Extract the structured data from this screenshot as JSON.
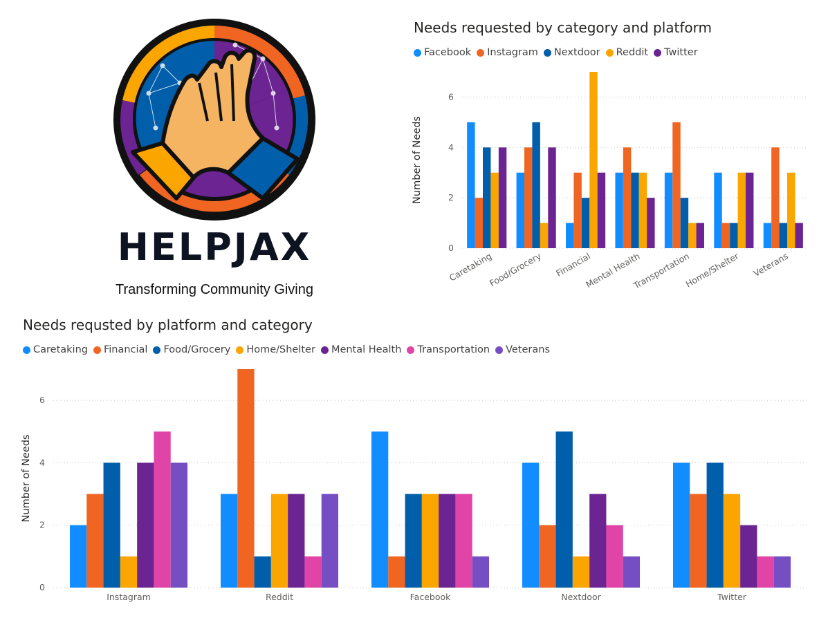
{
  "logo": {
    "name": "HELPJAX",
    "tagline": "Transforming Community Giving",
    "icon": "praying-hands-stained-glass-logo"
  },
  "chart_data": [
    {
      "type": "bar",
      "title": "Needs requested by category and platform",
      "xlabel": "",
      "ylabel": "Number of Needs",
      "ylim": [
        0,
        7
      ],
      "yticks": [
        0,
        2,
        4,
        6
      ],
      "grid": true,
      "legend": "top-left",
      "categories": [
        "Caretaking",
        "Food/Grocery",
        "Financial",
        "Mental Health",
        "Transportation",
        "Home/Shelter",
        "Veterans"
      ],
      "series": [
        {
          "name": "Facebook",
          "color": "#118DFF",
          "values": [
            5,
            3,
            1,
            3,
            3,
            3,
            1
          ]
        },
        {
          "name": "Instagram",
          "color": "#F06522",
          "values": [
            2,
            4,
            3,
            4,
            5,
            1,
            4
          ]
        },
        {
          "name": "Nextdoor",
          "color": "#005EAA",
          "values": [
            4,
            5,
            2,
            3,
            2,
            1,
            1
          ]
        },
        {
          "name": "Reddit",
          "color": "#FAA500",
          "values": [
            3,
            1,
            7,
            3,
            1,
            3,
            3
          ]
        },
        {
          "name": "Twitter",
          "color": "#6B2491",
          "values": [
            4,
            4,
            3,
            2,
            1,
            3,
            1
          ]
        }
      ]
    },
    {
      "type": "bar",
      "title": "Needs requsted by platform and category",
      "xlabel": "",
      "ylabel": "Number of Needs",
      "ylim": [
        0,
        7
      ],
      "yticks": [
        0,
        2,
        4,
        6
      ],
      "grid": true,
      "legend": "top-left",
      "categories": [
        "Instagram",
        "Reddit",
        "Facebook",
        "Nextdoor",
        "Twitter"
      ],
      "series": [
        {
          "name": "Caretaking",
          "color": "#118DFF",
          "values": [
            2,
            3,
            5,
            4,
            4
          ]
        },
        {
          "name": "Financial",
          "color": "#F06522",
          "values": [
            3,
            7,
            1,
            2,
            3
          ]
        },
        {
          "name": "Food/Grocery",
          "color": "#005EAA",
          "values": [
            4,
            1,
            3,
            5,
            4
          ]
        },
        {
          "name": "Home/Shelter",
          "color": "#FAA500",
          "values": [
            1,
            3,
            3,
            1,
            3
          ]
        },
        {
          "name": "Mental Health",
          "color": "#6B2491",
          "values": [
            4,
            3,
            3,
            3,
            2
          ]
        },
        {
          "name": "Transportation",
          "color": "#E044A7",
          "values": [
            5,
            1,
            3,
            2,
            1
          ]
        },
        {
          "name": "Veterans",
          "color": "#744EC2",
          "values": [
            4,
            3,
            1,
            1,
            1
          ]
        }
      ]
    }
  ]
}
